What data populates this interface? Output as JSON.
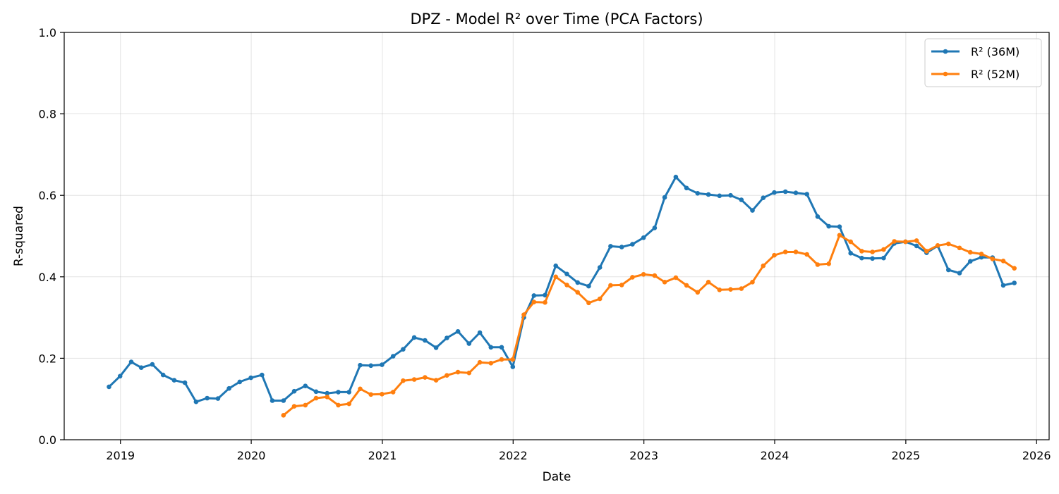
{
  "chart_data": {
    "type": "line",
    "title": "DPZ - Model R² over Time (PCA Factors)",
    "xlabel": "Date",
    "ylabel": "R-squared",
    "ylim": [
      0,
      1.0
    ],
    "xlim": [
      "2018-07-28",
      "2026-02-05"
    ],
    "x_ticks": [
      "2019",
      "2020",
      "2021",
      "2022",
      "2023",
      "2024",
      "2025",
      "2026"
    ],
    "y_ticks": [
      "0.0",
      "0.2",
      "0.4",
      "0.6",
      "0.8",
      "1.0"
    ],
    "grid": true,
    "legend_position": "top-right",
    "series": [
      {
        "name": "R² (36M)",
        "color": "#1f77b4",
        "points": [
          [
            "2018-11-30",
            0.13
          ],
          [
            "2018-12-31",
            0.156
          ],
          [
            "2019-01-31",
            0.191
          ],
          [
            "2019-02-28",
            0.177
          ],
          [
            "2019-03-31",
            0.185
          ],
          [
            "2019-04-30",
            0.159
          ],
          [
            "2019-05-31",
            0.146
          ],
          [
            "2019-06-30",
            0.14
          ],
          [
            "2019-07-31",
            0.093
          ],
          [
            "2019-08-31",
            0.102
          ],
          [
            "2019-09-30",
            0.101
          ],
          [
            "2019-10-31",
            0.126
          ],
          [
            "2019-11-30",
            0.142
          ],
          [
            "2019-12-31",
            0.152
          ],
          [
            "2020-01-31",
            0.159
          ],
          [
            "2020-02-29",
            0.096
          ],
          [
            "2020-03-31",
            0.096
          ],
          [
            "2020-04-30",
            0.119
          ],
          [
            "2020-05-31",
            0.132
          ],
          [
            "2020-06-30",
            0.118
          ],
          [
            "2020-07-31",
            0.114
          ],
          [
            "2020-08-31",
            0.117
          ],
          [
            "2020-09-30",
            0.117
          ],
          [
            "2020-10-31",
            0.183
          ],
          [
            "2020-11-30",
            0.182
          ],
          [
            "2020-12-31",
            0.184
          ],
          [
            "2021-01-31",
            0.205
          ],
          [
            "2021-02-28",
            0.222
          ],
          [
            "2021-03-31",
            0.251
          ],
          [
            "2021-04-30",
            0.244
          ],
          [
            "2021-05-31",
            0.226
          ],
          [
            "2021-06-30",
            0.25
          ],
          [
            "2021-07-31",
            0.266
          ],
          [
            "2021-08-31",
            0.236
          ],
          [
            "2021-09-30",
            0.263
          ],
          [
            "2021-10-31",
            0.227
          ],
          [
            "2021-11-30",
            0.227
          ],
          [
            "2021-12-31",
            0.179
          ],
          [
            "2022-01-31",
            0.3
          ],
          [
            "2022-02-28",
            0.354
          ],
          [
            "2022-03-31",
            0.355
          ],
          [
            "2022-04-30",
            0.427
          ],
          [
            "2022-05-31",
            0.407
          ],
          [
            "2022-06-30",
            0.386
          ],
          [
            "2022-07-31",
            0.377
          ],
          [
            "2022-08-31",
            0.423
          ],
          [
            "2022-09-30",
            0.475
          ],
          [
            "2022-10-31",
            0.473
          ],
          [
            "2022-11-30",
            0.48
          ],
          [
            "2022-12-31",
            0.496
          ],
          [
            "2023-01-31",
            0.52
          ],
          [
            "2023-02-28",
            0.595
          ],
          [
            "2023-03-31",
            0.645
          ],
          [
            "2023-04-30",
            0.618
          ],
          [
            "2023-05-31",
            0.605
          ],
          [
            "2023-06-30",
            0.602
          ],
          [
            "2023-07-31",
            0.599
          ],
          [
            "2023-08-31",
            0.6
          ],
          [
            "2023-09-30",
            0.589
          ],
          [
            "2023-10-31",
            0.563
          ],
          [
            "2023-11-30",
            0.594
          ],
          [
            "2023-12-31",
            0.607
          ],
          [
            "2024-01-31",
            0.609
          ],
          [
            "2024-02-29",
            0.606
          ],
          [
            "2024-03-31",
            0.603
          ],
          [
            "2024-04-30",
            0.548
          ],
          [
            "2024-05-31",
            0.524
          ],
          [
            "2024-06-30",
            0.523
          ],
          [
            "2024-07-31",
            0.458
          ],
          [
            "2024-08-31",
            0.446
          ],
          [
            "2024-09-30",
            0.445
          ],
          [
            "2024-10-31",
            0.446
          ],
          [
            "2024-11-30",
            0.482
          ],
          [
            "2024-12-31",
            0.486
          ],
          [
            "2025-01-31",
            0.476
          ],
          [
            "2025-02-28",
            0.459
          ],
          [
            "2025-03-31",
            0.476
          ],
          [
            "2025-04-30",
            0.417
          ],
          [
            "2025-05-31",
            0.409
          ],
          [
            "2025-06-30",
            0.438
          ],
          [
            "2025-07-31",
            0.448
          ],
          [
            "2025-08-31",
            0.447
          ],
          [
            "2025-09-30",
            0.379
          ],
          [
            "2025-10-31",
            0.385
          ]
        ]
      },
      {
        "name": "R² (52M)",
        "color": "#ff7f0e",
        "points": [
          [
            "2020-03-31",
            0.06
          ],
          [
            "2020-04-30",
            0.082
          ],
          [
            "2020-05-31",
            0.085
          ],
          [
            "2020-06-30",
            0.102
          ],
          [
            "2020-07-31",
            0.105
          ],
          [
            "2020-08-31",
            0.085
          ],
          [
            "2020-09-30",
            0.088
          ],
          [
            "2020-10-31",
            0.125
          ],
          [
            "2020-11-30",
            0.111
          ],
          [
            "2020-12-31",
            0.112
          ],
          [
            "2021-01-31",
            0.117
          ],
          [
            "2021-02-28",
            0.145
          ],
          [
            "2021-03-31",
            0.148
          ],
          [
            "2021-04-30",
            0.153
          ],
          [
            "2021-05-31",
            0.146
          ],
          [
            "2021-06-30",
            0.158
          ],
          [
            "2021-07-31",
            0.166
          ],
          [
            "2021-08-31",
            0.164
          ],
          [
            "2021-09-30",
            0.19
          ],
          [
            "2021-10-31",
            0.188
          ],
          [
            "2021-11-30",
            0.197
          ],
          [
            "2021-12-31",
            0.197
          ],
          [
            "2022-01-31",
            0.307
          ],
          [
            "2022-02-28",
            0.338
          ],
          [
            "2022-03-31",
            0.337
          ],
          [
            "2022-04-30",
            0.4
          ],
          [
            "2022-05-31",
            0.38
          ],
          [
            "2022-06-30",
            0.362
          ],
          [
            "2022-07-31",
            0.336
          ],
          [
            "2022-08-31",
            0.346
          ],
          [
            "2022-09-30",
            0.379
          ],
          [
            "2022-10-31",
            0.38
          ],
          [
            "2022-11-30",
            0.399
          ],
          [
            "2022-12-31",
            0.406
          ],
          [
            "2023-01-31",
            0.403
          ],
          [
            "2023-02-28",
            0.387
          ],
          [
            "2023-03-31",
            0.398
          ],
          [
            "2023-04-30",
            0.379
          ],
          [
            "2023-05-31",
            0.362
          ],
          [
            "2023-06-30",
            0.387
          ],
          [
            "2023-07-31",
            0.368
          ],
          [
            "2023-08-31",
            0.369
          ],
          [
            "2023-09-30",
            0.371
          ],
          [
            "2023-10-31",
            0.387
          ],
          [
            "2023-11-30",
            0.427
          ],
          [
            "2023-12-31",
            0.453
          ],
          [
            "2024-01-31",
            0.461
          ],
          [
            "2024-02-29",
            0.461
          ],
          [
            "2024-03-31",
            0.455
          ],
          [
            "2024-04-30",
            0.43
          ],
          [
            "2024-05-31",
            0.432
          ],
          [
            "2024-06-30",
            0.502
          ],
          [
            "2024-07-31",
            0.486
          ],
          [
            "2024-08-31",
            0.463
          ],
          [
            "2024-09-30",
            0.461
          ],
          [
            "2024-10-31",
            0.467
          ],
          [
            "2024-11-30",
            0.487
          ],
          [
            "2024-12-31",
            0.486
          ],
          [
            "2025-01-31",
            0.489
          ],
          [
            "2025-02-28",
            0.463
          ],
          [
            "2025-03-31",
            0.477
          ],
          [
            "2025-04-30",
            0.481
          ],
          [
            "2025-05-31",
            0.471
          ],
          [
            "2025-06-30",
            0.46
          ],
          [
            "2025-07-31",
            0.456
          ],
          [
            "2025-08-31",
            0.444
          ],
          [
            "2025-09-30",
            0.439
          ],
          [
            "2025-10-31",
            0.421
          ]
        ]
      }
    ]
  }
}
